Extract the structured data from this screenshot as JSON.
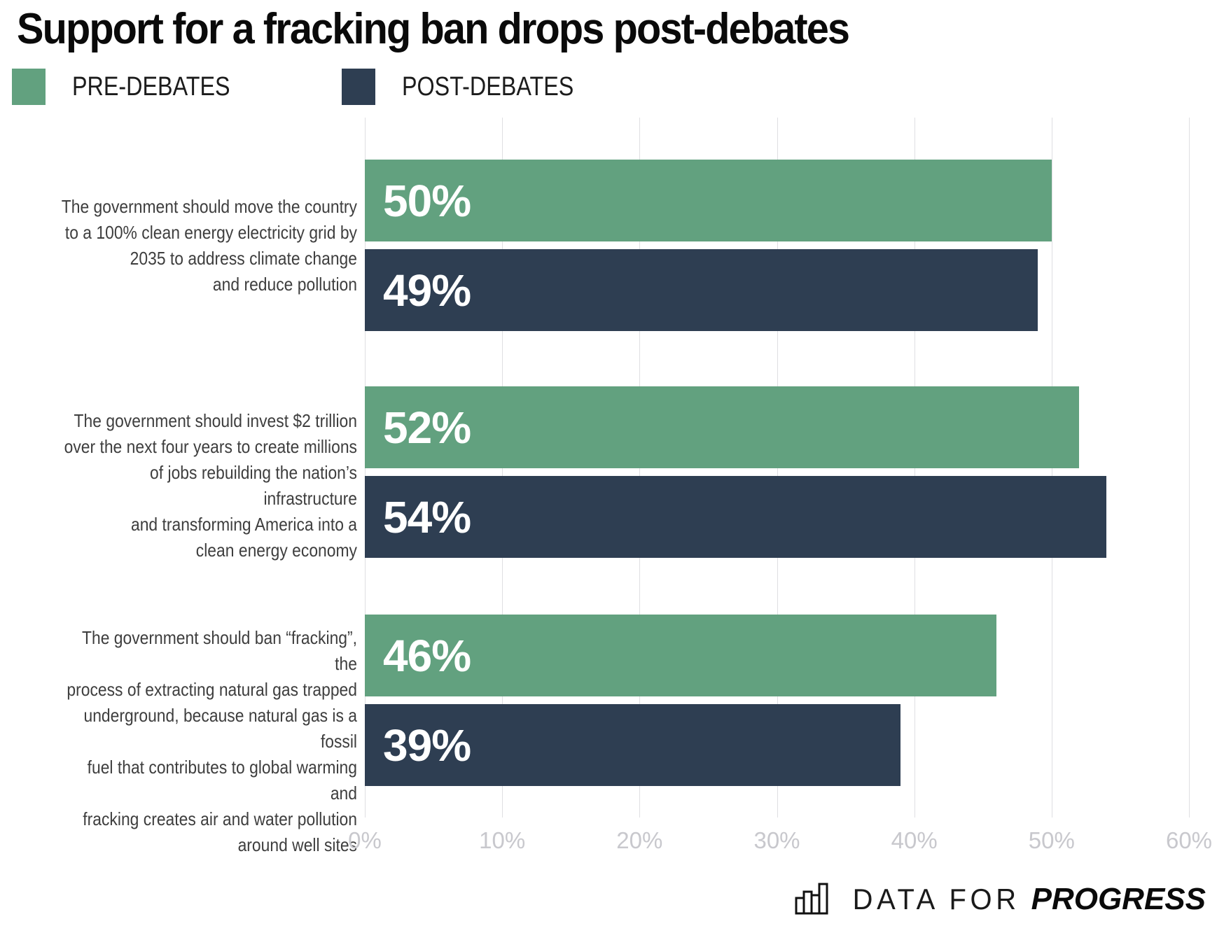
{
  "title": "Support for a fracking ban drops post-debates",
  "legend": [
    {
      "label": "PRE-DEBATES",
      "color": "#62a17f"
    },
    {
      "label": "POST-DEBATES",
      "color": "#2e3e52"
    }
  ],
  "chart_data": {
    "type": "bar",
    "orientation": "horizontal",
    "title": "Support for a fracking ban drops post-debates",
    "grid": true,
    "legend_position": "top-left",
    "axis": {
      "min": 0,
      "max": 60,
      "unit": "%",
      "tick_values": [
        0,
        10,
        20,
        30,
        40,
        50,
        60
      ],
      "ticks": [
        "0%",
        "10%",
        "20%",
        "30%",
        "40%",
        "50%",
        "60%"
      ]
    },
    "series_names": [
      "PRE-DEBATES",
      "POST-DEBATES"
    ],
    "colors": {
      "pre": "#62a17f",
      "post": "#2e3e52"
    },
    "groups": [
      {
        "label": "The government should move the country\nto a 100% clean energy electricity grid by\n2035 to address climate change\nand reduce pollution",
        "pre": 50,
        "pre_label": "50%",
        "post": 49,
        "post_label": "49%"
      },
      {
        "label": "The government should invest $2 trillion\nover the next four years to create millions\nof jobs rebuilding the nation’s infrastructure\nand transforming America into a\nclean energy economy",
        "pre": 52,
        "pre_label": "52%",
        "post": 54,
        "post_label": "54%"
      },
      {
        "label": "The government should ban “fracking”, the\nprocess of extracting natural gas trapped\nunderground, because natural gas is a fossil\nfuel that contributes to global warming and\nfracking creates air and water pollution\naround well sites",
        "pre": 46,
        "pre_label": "46%",
        "post": 39,
        "post_label": "39%"
      }
    ]
  },
  "footer": {
    "brand_regular": "DATA FOR",
    "brand_bold": "PROGRESS",
    "icon": "bar-chart-icon"
  }
}
